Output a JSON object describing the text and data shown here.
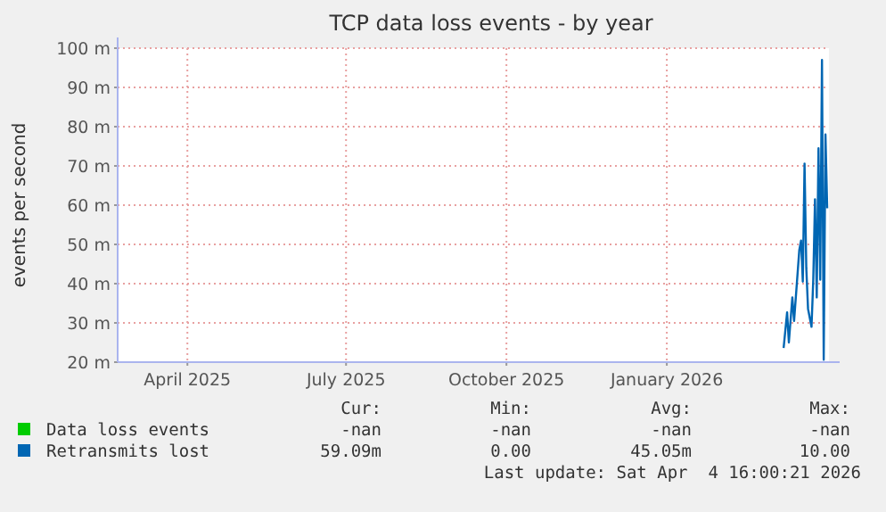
{
  "chart_data": {
    "type": "line",
    "title": "TCP data loss events - by year",
    "ylabel": "events per second",
    "x": [
      "2026-03-09",
      "2026-03-11",
      "2026-03-12",
      "2026-03-14",
      "2026-03-15",
      "2026-03-18",
      "2026-03-19",
      "2026-03-20",
      "2026-03-21",
      "2026-03-22",
      "2026-03-23",
      "2026-03-25",
      "2026-03-26",
      "2026-03-27",
      "2026-03-28",
      "2026-03-29",
      "2026-03-30",
      "2026-03-31",
      "2026-04-01",
      "2026-04-02",
      "2026-04-03"
    ],
    "series": [
      {
        "name": "Data loss events",
        "color": "#00cc00",
        "values": [
          null,
          null,
          null,
          null,
          null,
          null,
          null,
          null,
          null,
          null,
          null,
          null,
          null,
          null,
          null,
          null,
          null,
          null,
          null,
          null,
          null
        ]
      },
      {
        "name": "Retransmits lost",
        "color": "#0066b3",
        "values": [
          23.6,
          32.7,
          25,
          36.5,
          30.5,
          48.6,
          51,
          40.5,
          70.6,
          44,
          33.6,
          29,
          41,
          61.5,
          36.5,
          74.5,
          41,
          97,
          20.6,
          78,
          59.2
        ]
      }
    ],
    "xlim": [
      "2025-02-20",
      "2026-04-04"
    ],
    "xticks": [
      {
        "value": "2025-04-01",
        "label": "April 2025"
      },
      {
        "value": "2025-07-01",
        "label": "July 2025"
      },
      {
        "value": "2025-10-01",
        "label": "October 2025"
      },
      {
        "value": "2026-01-01",
        "label": "January 2026"
      }
    ],
    "ylim": [
      20,
      100
    ],
    "yticks": [
      {
        "value": 20,
        "label": "20 m"
      },
      {
        "value": 30,
        "label": "30 m"
      },
      {
        "value": 40,
        "label": "40 m"
      },
      {
        "value": 50,
        "label": "50 m"
      },
      {
        "value": 60,
        "label": "60 m"
      },
      {
        "value": 70,
        "label": "70 m"
      },
      {
        "value": 80,
        "label": "80 m"
      },
      {
        "value": 90,
        "label": "90 m"
      },
      {
        "value": 100,
        "label": "100 m"
      }
    ],
    "grid": true,
    "legend": "bottom",
    "marker": "none",
    "line_style": "solid",
    "annotations": [
      "Cur:",
      "Min:",
      "Avg:",
      "Max:",
      "-nan",
      "-nan",
      "-nan",
      "-nan",
      "59.09m",
      "0.00",
      "45.05m",
      "10.00",
      "Last update: Sat Apr  4 16:00:21 2026"
    ]
  }
}
